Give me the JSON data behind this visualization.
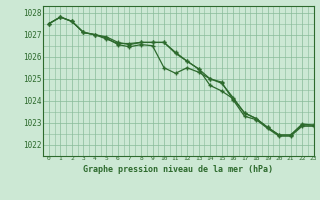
{
  "title": "Graphe pression niveau de la mer (hPa)",
  "background_color": "#cce8d4",
  "grid_color": "#88bb99",
  "line_color": "#2d6a2d",
  "xlim": [
    -0.5,
    23
  ],
  "ylim": [
    1021.5,
    1028.3
  ],
  "yticks": [
    1022,
    1023,
    1024,
    1025,
    1026,
    1027,
    1028
  ],
  "xticks": [
    0,
    1,
    2,
    3,
    4,
    5,
    6,
    7,
    8,
    9,
    10,
    11,
    12,
    13,
    14,
    15,
    16,
    17,
    18,
    19,
    20,
    21,
    22,
    23
  ],
  "series": [
    [
      1027.5,
      1027.8,
      1027.6,
      1027.1,
      1027.0,
      1026.8,
      1026.6,
      1026.6,
      1026.65,
      1026.65,
      1026.65,
      1026.2,
      1025.8,
      1025.45,
      1024.7,
      1024.45,
      1024.1,
      1023.45,
      1023.2,
      1022.8,
      1022.45,
      1022.45,
      1022.9,
      1022.9
    ],
    [
      1027.5,
      1027.8,
      1027.6,
      1027.1,
      1027.0,
      1026.85,
      1026.55,
      1026.45,
      1026.55,
      1026.5,
      1025.5,
      1025.25,
      1025.5,
      1025.3,
      1025.0,
      1024.85,
      1024.05,
      1023.3,
      1023.15,
      1022.75,
      1022.4,
      1022.4,
      1022.85,
      1022.85
    ],
    [
      1027.5,
      1027.8,
      1027.6,
      1027.1,
      1027.0,
      1026.9,
      1026.65,
      1026.55,
      1026.65,
      1026.65,
      1026.65,
      1026.15,
      1025.8,
      1025.45,
      1025.0,
      1024.8,
      1024.15,
      1023.45,
      1023.2,
      1022.8,
      1022.45,
      1022.45,
      1022.95,
      1022.9
    ]
  ]
}
